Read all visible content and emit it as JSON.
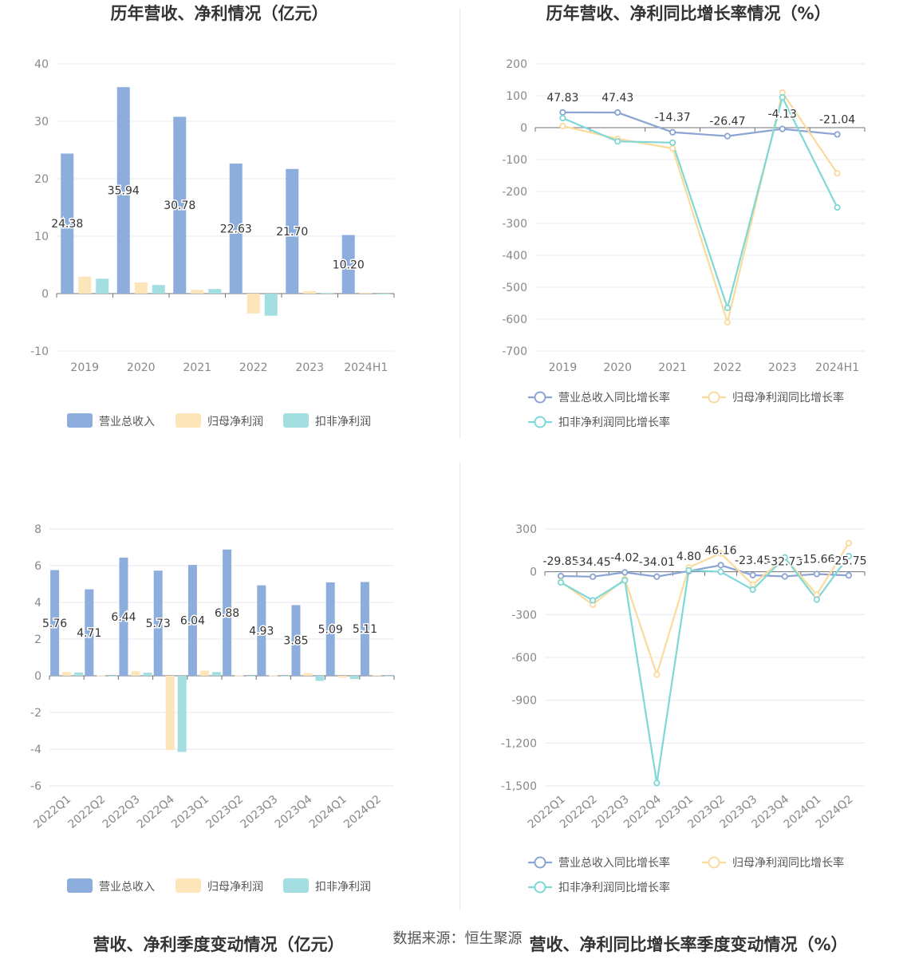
{
  "footer": {
    "source": "数据来源：恒生聚源"
  },
  "colors": {
    "revenue": "#8daedd",
    "net_profit": "#fce5b8",
    "deducted_profit": "#a3dee0",
    "revenue_line": "#8ba4d4",
    "net_line": "#fadb9c",
    "deducted_line": "#7fd7d7"
  },
  "chart_data": [
    {
      "id": "annual-values",
      "type": "bar",
      "title": "历年营收、净利情况（亿元）",
      "categories": [
        "2019",
        "2020",
        "2021",
        "2022",
        "2023",
        "2024H1"
      ],
      "ylim": [
        -10,
        40
      ],
      "yticks": [
        -10,
        0,
        10,
        20,
        30,
        40
      ],
      "ytick_labels": [
        "-10",
        "0",
        "10",
        "20",
        "30",
        "40"
      ],
      "legend_position": "bottom",
      "series": [
        {
          "name": "营业总收入",
          "values": [
            24.38,
            35.94,
            30.78,
            22.63,
            21.7,
            10.2
          ],
          "labels": [
            "24.38",
            "35.94",
            "30.78",
            "22.63",
            "21.70",
            "10.20"
          ]
        },
        {
          "name": "归母净利润",
          "values": [
            2.95,
            1.95,
            0.65,
            -3.45,
            0.45,
            0.15
          ]
        },
        {
          "name": "扣非净利润",
          "values": [
            2.6,
            1.5,
            0.8,
            -3.85,
            0.1,
            -0.1
          ]
        }
      ]
    },
    {
      "id": "annual-growth",
      "type": "line",
      "title": "历年营收、净利同比增长率情况（%）",
      "categories": [
        "2019",
        "2020",
        "2021",
        "2022",
        "2023",
        "2024H1"
      ],
      "ylim": [
        -700,
        200
      ],
      "yticks": [
        -700,
        -600,
        -500,
        -400,
        -300,
        -200,
        -100,
        0,
        100,
        200
      ],
      "ytick_labels": [
        "-700",
        "-600",
        "-500",
        "-400",
        "-300",
        "-200",
        "-100",
        "0",
        "100",
        "200"
      ],
      "legend_position": "bottom",
      "series": [
        {
          "name": "营业总收入同比增长率",
          "values": [
            47.83,
            47.43,
            -14.37,
            -26.47,
            -4.13,
            -21.04
          ],
          "labels": [
            "47.83",
            "47.43",
            "-14.37",
            "-26.47",
            "-4.13",
            "-21.04"
          ]
        },
        {
          "name": "归母净利润同比增长率",
          "values": [
            5,
            -35,
            -65,
            -610,
            110,
            -143
          ]
        },
        {
          "name": "扣非净利润同比增长率",
          "values": [
            30,
            -43,
            -47,
            -565,
            95,
            -250
          ]
        }
      ]
    },
    {
      "id": "quarterly-values",
      "type": "bar",
      "title": "营收、净利季度变动情况（亿元）",
      "categories": [
        "2022Q1",
        "2022Q2",
        "2022Q3",
        "2022Q4",
        "2023Q1",
        "2023Q2",
        "2023Q3",
        "2023Q4",
        "2024Q1",
        "2024Q2"
      ],
      "ylim": [
        -6,
        8
      ],
      "yticks": [
        -6,
        -4,
        -2,
        0,
        2,
        4,
        6,
        8
      ],
      "ytick_labels": [
        "-6",
        "-4",
        "-2",
        "0",
        "2",
        "4",
        "6",
        "8"
      ],
      "legend_position": "bottom",
      "series": [
        {
          "name": "营业总收入",
          "values": [
            5.76,
            4.71,
            6.44,
            5.73,
            6.04,
            6.88,
            4.93,
            3.85,
            5.09,
            5.11
          ],
          "labels": [
            "5.76",
            "4.71",
            "6.44",
            "5.73",
            "6.04",
            "6.88",
            "4.93",
            "3.85",
            "5.09",
            "5.11"
          ]
        },
        {
          "name": "归母净利润",
          "values": [
            0.2,
            0.02,
            0.25,
            -4.05,
            0.28,
            0.02,
            0.02,
            0.15,
            -0.1,
            0.03
          ]
        },
        {
          "name": "扣非净利润",
          "values": [
            0.18,
            0.0,
            0.17,
            -4.15,
            0.2,
            -0.01,
            -0.01,
            -0.28,
            -0.18,
            -0.02
          ]
        }
      ]
    },
    {
      "id": "quarterly-growth",
      "type": "line",
      "title": "营收、净利同比增长率季度变动情况（%）",
      "categories": [
        "2022Q1",
        "2022Q2",
        "2022Q3",
        "2022Q4",
        "2023Q1",
        "2023Q2",
        "2023Q3",
        "2023Q4",
        "2024Q1",
        "2024Q2"
      ],
      "ylim": [
        -1500,
        300
      ],
      "yticks": [
        -1500,
        -1200,
        -900,
        -600,
        -300,
        0,
        300
      ],
      "ytick_labels": [
        "-1,500",
        "-1,200",
        "-900",
        "-600",
        "-300",
        "0",
        "300"
      ],
      "legend_position": "bottom",
      "series": [
        {
          "name": "营业总收入同比增长率",
          "values": [
            -29.85,
            -34.45,
            -4.02,
            -34.01,
            4.8,
            46.16,
            -23.45,
            -32.73,
            -15.66,
            -25.75
          ],
          "labels": [
            "-29.85",
            "-34.45",
            "-4.02",
            "-34.01",
            "4.80",
            "46.16",
            "-23.45",
            "-32.73",
            "-15.66",
            "-25.75"
          ]
        },
        {
          "name": "归母净利润同比增长率",
          "values": [
            -70,
            -230,
            -50,
            -720,
            30,
            130,
            -90,
            100,
            -160,
            200
          ]
        },
        {
          "name": "扣非净利润同比增长率",
          "values": [
            -75,
            -200,
            -60,
            -1480,
            10,
            0,
            -125,
            100,
            -195,
            110
          ]
        }
      ]
    }
  ]
}
